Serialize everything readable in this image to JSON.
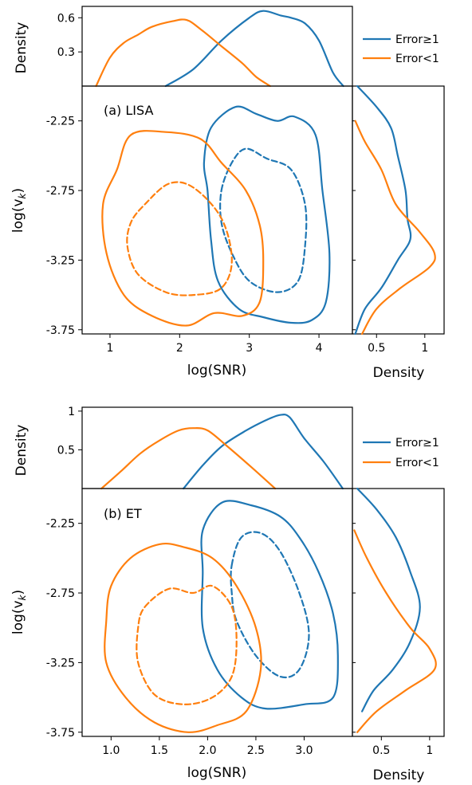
{
  "colors": {
    "error_ge1": "#1f77b4",
    "error_lt1": "#ff7f0e"
  },
  "legend": {
    "entries": [
      "Error≥1",
      "Error<1"
    ]
  },
  "chart_data": [
    {
      "type": "contour",
      "panel_label": "(a) LISA",
      "xlabel": "log(SNR)",
      "ylabel": "log(v_k)",
      "ylabel_main": "log(v",
      "ylabel_sub": "k",
      "ylabel_close": ")",
      "top_ylabel": "Density",
      "right_xlabel": "Density",
      "xlim": [
        0.6,
        4.48
      ],
      "ylim": [
        -3.78,
        -2.0
      ],
      "xticks": [
        1,
        2,
        3,
        4
      ],
      "xtick_labels": [
        "1",
        "2",
        "3",
        "4"
      ],
      "yticks": [
        -2.25,
        -2.75,
        -3.25,
        -3.75
      ],
      "ytick_labels": [
        "-2.25",
        "-2.75",
        "-3.25",
        "-3.75"
      ],
      "top_ylim": [
        0,
        0.7
      ],
      "top_yticks": [
        0.3,
        0.6
      ],
      "top_ytick_labels": [
        "0.3",
        "0.6"
      ],
      "right_xlim": [
        0.25,
        1.2
      ],
      "right_xticks": [
        0.5,
        1.0
      ],
      "right_xtick_labels": [
        "0.5",
        "1"
      ],
      "series": [
        {
          "name": "Error≥1",
          "color_key": "error_ge1",
          "outer": [
            [
              2.4,
              -2.75
            ],
            [
              2.35,
              -2.55
            ],
            [
              2.45,
              -2.3
            ],
            [
              2.8,
              -2.15
            ],
            [
              3.1,
              -2.2
            ],
            [
              3.4,
              -2.25
            ],
            [
              3.65,
              -2.22
            ],
            [
              3.95,
              -2.35
            ],
            [
              4.05,
              -2.75
            ],
            [
              4.15,
              -3.2
            ],
            [
              4.1,
              -3.55
            ],
            [
              3.9,
              -3.68
            ],
            [
              3.6,
              -3.7
            ],
            [
              3.2,
              -3.66
            ],
            [
              2.85,
              -3.6
            ],
            [
              2.55,
              -3.4
            ],
            [
              2.45,
              -3.1
            ]
          ],
          "inner": [
            [
              2.6,
              -2.75
            ],
            [
              2.75,
              -2.55
            ],
            [
              2.95,
              -2.45
            ],
            [
              3.25,
              -2.52
            ],
            [
              3.6,
              -2.6
            ],
            [
              3.8,
              -2.85
            ],
            [
              3.8,
              -3.15
            ],
            [
              3.7,
              -3.4
            ],
            [
              3.4,
              -3.48
            ],
            [
              3.0,
              -3.4
            ],
            [
              2.75,
              -3.2
            ],
            [
              2.6,
              -2.98
            ]
          ],
          "marg_x": [
            [
              1.8,
              0
            ],
            [
              2.2,
              0.15
            ],
            [
              2.6,
              0.4
            ],
            [
              3.0,
              0.6
            ],
            [
              3.2,
              0.66
            ],
            [
              3.45,
              0.62
            ],
            [
              3.6,
              0.6
            ],
            [
              3.8,
              0.55
            ],
            [
              4.0,
              0.4
            ],
            [
              4.2,
              0.12
            ],
            [
              4.35,
              0
            ]
          ],
          "marg_y": [
            [
              -2.0,
              0.3
            ],
            [
              -2.15,
              0.5
            ],
            [
              -2.3,
              0.65
            ],
            [
              -2.5,
              0.72
            ],
            [
              -2.75,
              0.8
            ],
            [
              -2.95,
              0.82
            ],
            [
              -3.1,
              0.85
            ],
            [
              -3.25,
              0.72
            ],
            [
              -3.45,
              0.55
            ],
            [
              -3.6,
              0.38
            ],
            [
              -3.78,
              0.28
            ]
          ]
        },
        {
          "name": "Error<1",
          "color_key": "error_lt1",
          "outer": [
            [
              1.1,
              -2.6
            ],
            [
              1.3,
              -2.35
            ],
            [
              1.8,
              -2.33
            ],
            [
              2.3,
              -2.38
            ],
            [
              2.6,
              -2.55
            ],
            [
              2.95,
              -2.75
            ],
            [
              3.15,
              -3.0
            ],
            [
              3.2,
              -3.25
            ],
            [
              3.15,
              -3.55
            ],
            [
              2.9,
              -3.65
            ],
            [
              2.5,
              -3.63
            ],
            [
              2.1,
              -3.72
            ],
            [
              1.6,
              -3.65
            ],
            [
              1.2,
              -3.5
            ],
            [
              0.95,
              -3.2
            ],
            [
              0.9,
              -2.85
            ]
          ],
          "inner": [
            [
              1.5,
              -2.85
            ],
            [
              1.85,
              -2.7
            ],
            [
              2.2,
              -2.73
            ],
            [
              2.6,
              -2.95
            ],
            [
              2.75,
              -3.25
            ],
            [
              2.6,
              -3.45
            ],
            [
              2.2,
              -3.5
            ],
            [
              1.8,
              -3.48
            ],
            [
              1.4,
              -3.35
            ],
            [
              1.25,
              -3.15
            ],
            [
              1.3,
              -2.98
            ]
          ],
          "marg_x": [
            [
              0.8,
              0
            ],
            [
              1.0,
              0.25
            ],
            [
              1.2,
              0.38
            ],
            [
              1.4,
              0.45
            ],
            [
              1.6,
              0.52
            ],
            [
              1.9,
              0.57
            ],
            [
              2.1,
              0.58
            ],
            [
              2.3,
              0.5
            ],
            [
              2.6,
              0.35
            ],
            [
              2.9,
              0.2
            ],
            [
              3.1,
              0.08
            ],
            [
              3.3,
              0
            ]
          ],
          "marg_y": [
            [
              -2.25,
              0.28
            ],
            [
              -2.4,
              0.38
            ],
            [
              -2.6,
              0.55
            ],
            [
              -2.85,
              0.7
            ],
            [
              -3.05,
              0.95
            ],
            [
              -3.2,
              1.1
            ],
            [
              -3.3,
              1.05
            ],
            [
              -3.45,
              0.75
            ],
            [
              -3.6,
              0.5
            ],
            [
              -3.78,
              0.35
            ]
          ]
        }
      ]
    },
    {
      "type": "contour",
      "panel_label": "(b) ET",
      "xlabel": "log(SNR)",
      "ylabel": "log(v_k)",
      "ylabel_main": "log(v",
      "ylabel_sub": "k",
      "ylabel_close": ")",
      "top_ylabel": "Density",
      "right_xlabel": "Density",
      "xlim": [
        0.7,
        3.5
      ],
      "ylim": [
        -3.78,
        -2.0
      ],
      "xticks": [
        1.0,
        1.5,
        2.0,
        2.5,
        3.0
      ],
      "xtick_labels": [
        "1.0",
        "1.5",
        "2.0",
        "2.5",
        "3.0"
      ],
      "yticks": [
        -2.25,
        -2.75,
        -3.25,
        -3.75
      ],
      "ytick_labels": [
        "-2.25",
        "-2.75",
        "-3.25",
        "-3.75"
      ],
      "top_ylim": [
        0,
        1.05
      ],
      "top_yticks": [
        0.5,
        1.0
      ],
      "top_ytick_labels": [
        "0.5",
        "1"
      ],
      "right_xlim": [
        0.2,
        1.15
      ],
      "right_xticks": [
        0.5,
        1.0
      ],
      "right_xtick_labels": [
        "0.5",
        "1"
      ],
      "series": [
        {
          "name": "Error≥1",
          "color_key": "error_ge1",
          "outer": [
            [
              1.95,
              -2.6
            ],
            [
              1.95,
              -2.3
            ],
            [
              2.15,
              -2.1
            ],
            [
              2.45,
              -2.12
            ],
            [
              2.75,
              -2.2
            ],
            [
              2.95,
              -2.35
            ],
            [
              3.15,
              -2.6
            ],
            [
              3.3,
              -2.9
            ],
            [
              3.35,
              -3.2
            ],
            [
              3.3,
              -3.5
            ],
            [
              3.0,
              -3.55
            ],
            [
              2.6,
              -3.58
            ],
            [
              2.35,
              -3.5
            ],
            [
              2.1,
              -3.3
            ],
            [
              1.95,
              -3.0
            ]
          ],
          "inner": [
            [
              2.25,
              -2.55
            ],
            [
              2.35,
              -2.35
            ],
            [
              2.55,
              -2.32
            ],
            [
              2.75,
              -2.45
            ],
            [
              2.95,
              -2.75
            ],
            [
              3.05,
              -3.05
            ],
            [
              2.95,
              -3.3
            ],
            [
              2.75,
              -3.35
            ],
            [
              2.5,
              -3.2
            ],
            [
              2.3,
              -2.95
            ],
            [
              2.25,
              -2.75
            ]
          ],
          "marg_x": [
            [
              1.75,
              0
            ],
            [
              1.95,
              0.3
            ],
            [
              2.15,
              0.55
            ],
            [
              2.4,
              0.75
            ],
            [
              2.6,
              0.88
            ],
            [
              2.75,
              0.95
            ],
            [
              2.85,
              0.92
            ],
            [
              3.0,
              0.65
            ],
            [
              3.2,
              0.35
            ],
            [
              3.4,
              0
            ]
          ],
          "marg_y": [
            [
              -2.0,
              0.25
            ],
            [
              -2.15,
              0.45
            ],
            [
              -2.35,
              0.65
            ],
            [
              -2.6,
              0.8
            ],
            [
              -2.85,
              0.9
            ],
            [
              -3.1,
              0.8
            ],
            [
              -3.3,
              0.62
            ],
            [
              -3.45,
              0.42
            ],
            [
              -3.6,
              0.3
            ]
          ]
        },
        {
          "name": "Error<1",
          "color_key": "error_lt1",
          "outer": [
            [
              1.0,
              -2.7
            ],
            [
              1.2,
              -2.5
            ],
            [
              1.5,
              -2.4
            ],
            [
              1.75,
              -2.42
            ],
            [
              2.05,
              -2.5
            ],
            [
              2.3,
              -2.7
            ],
            [
              2.5,
              -3.0
            ],
            [
              2.55,
              -3.3
            ],
            [
              2.4,
              -3.6
            ],
            [
              2.1,
              -3.7
            ],
            [
              1.8,
              -3.75
            ],
            [
              1.45,
              -3.68
            ],
            [
              1.15,
              -3.5
            ],
            [
              0.95,
              -3.25
            ],
            [
              0.95,
              -2.95
            ]
          ],
          "inner": [
            [
              1.35,
              -2.85
            ],
            [
              1.6,
              -2.72
            ],
            [
              1.85,
              -2.75
            ],
            [
              2.05,
              -2.7
            ],
            [
              2.25,
              -2.85
            ],
            [
              2.3,
              -3.1
            ],
            [
              2.25,
              -3.35
            ],
            [
              2.05,
              -3.5
            ],
            [
              1.75,
              -3.55
            ],
            [
              1.45,
              -3.48
            ],
            [
              1.28,
              -3.25
            ],
            [
              1.28,
              -3.0
            ]
          ],
          "marg_x": [
            [
              0.9,
              0
            ],
            [
              1.1,
              0.22
            ],
            [
              1.3,
              0.45
            ],
            [
              1.5,
              0.62
            ],
            [
              1.7,
              0.75
            ],
            [
              1.85,
              0.78
            ],
            [
              2.0,
              0.75
            ],
            [
              2.2,
              0.55
            ],
            [
              2.45,
              0.28
            ],
            [
              2.7,
              0
            ]
          ],
          "marg_y": [
            [
              -2.3,
              0.22
            ],
            [
              -2.5,
              0.35
            ],
            [
              -2.75,
              0.55
            ],
            [
              -3.0,
              0.8
            ],
            [
              -3.15,
              1.0
            ],
            [
              -3.3,
              1.05
            ],
            [
              -3.45,
              0.75
            ],
            [
              -3.6,
              0.45
            ],
            [
              -3.75,
              0.25
            ]
          ]
        }
      ]
    }
  ]
}
